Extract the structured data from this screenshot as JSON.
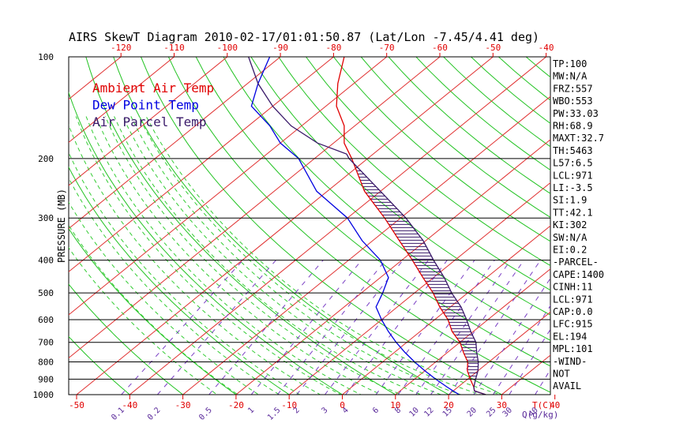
{
  "title": "AIRS SkewT Diagram 2010-02-17/01:01:50.87 (Lat/Lon -7.45/4.41 deg)",
  "legend": [
    {
      "label": "Ambient Air Temp",
      "color": "#e00000"
    },
    {
      "label": "Dew Point Temp",
      "color": "#0000e0"
    },
    {
      "label": "Air Parcel Temp",
      "color": "#3a1a6a"
    }
  ],
  "stats": [
    "TP:100",
    "MW:N/A",
    "FRZ:557",
    "WBO:553",
    "PW:33.03",
    "RH:68.9",
    "MAXT:32.7",
    "TH:5463",
    "L57:6.5",
    "LCL:971",
    "LI:-3.5",
    "SI:1.9",
    "TT:42.1",
    "KI:302",
    "SW:N/A",
    "EI:0.2",
    "-PARCEL-",
    "CAPE:1400",
    "CINH:11",
    "LCL:971",
    "CAP:0.0",
    "LFC:915",
    "EL:194",
    "MPL:101",
    "-WIND-",
    "NOT",
    "AVAIL"
  ],
  "chart_data": {
    "type": "line",
    "title": "AIRS SkewT Diagram 2010-02-17/01:01:50.87 (Lat/Lon -7.45/4.41 deg)",
    "ylabel": "PRESSURE (MB)",
    "xlabel": "T(C)",
    "y_log_scale": true,
    "ylim": [
      1000,
      100
    ],
    "xlim_bottom": [
      -50,
      40
    ],
    "pressure_ticks": [
      1000,
      900,
      800,
      700,
      600,
      500,
      400,
      300,
      200,
      100
    ],
    "temp_ticks_bottom": [
      -50,
      -40,
      -30,
      -20,
      -10,
      0,
      10,
      20,
      30,
      40
    ],
    "temp_ticks_top": [
      -120,
      -110,
      -100,
      -90,
      -80,
      -70,
      -60,
      -50,
      -40
    ],
    "mixing_ratio_labels": [
      "0.1",
      "0.2",
      "0.5",
      "1",
      "1.5",
      "2",
      "3",
      "4",
      "6",
      "8",
      "10",
      "12",
      "15",
      "20",
      "25",
      "30",
      "40"
    ],
    "mixing_ratio_unit": "Q(g/kg)",
    "series": [
      {
        "name": "Ambient Air Temp",
        "color": "#e00000",
        "pressure": [
          1000,
          975,
          950,
          900,
          850,
          800,
          750,
          700,
          650,
          600,
          550,
          500,
          450,
          400,
          350,
          300,
          250,
          200,
          180,
          160,
          140,
          120,
          100
        ],
        "temp": [
          27.0,
          24.0,
          23.0,
          20.5,
          18.0,
          16.0,
          13.0,
          10.0,
          6.0,
          2.5,
          -2.0,
          -6.5,
          -12.0,
          -18.0,
          -25.0,
          -33.0,
          -43.0,
          -53.0,
          -58.0,
          -62.0,
          -68.0,
          -73.0,
          -78.0
        ]
      },
      {
        "name": "Dew Point Temp",
        "color": "#0000e0",
        "pressure": [
          1000,
          975,
          950,
          900,
          850,
          800,
          750,
          700,
          650,
          600,
          550,
          500,
          450,
          400,
          350,
          300,
          250,
          200,
          180,
          160,
          140,
          120,
          100
        ],
        "temp": [
          22.0,
          20.0,
          18.0,
          14.0,
          10.0,
          6.0,
          2.0,
          -2.0,
          -6.0,
          -10.0,
          -14.0,
          -16.0,
          -18.5,
          -24.0,
          -32.0,
          -40.0,
          -52.0,
          -63.0,
          -70.0,
          -76.0,
          -84.0,
          -88.0,
          -92.0
        ]
      },
      {
        "name": "Air Parcel Temp",
        "color": "#3a1a6a",
        "pressure": [
          1000,
          975,
          950,
          900,
          850,
          800,
          750,
          700,
          650,
          600,
          550,
          500,
          450,
          400,
          350,
          300,
          250,
          200,
          194,
          180,
          160,
          140,
          120,
          100
        ],
        "temp": [
          27.0,
          24.0,
          23.0,
          21.5,
          20.0,
          18.0,
          15.5,
          13.0,
          9.5,
          6.0,
          2.0,
          -3.0,
          -8.0,
          -14.0,
          -20.5,
          -29.0,
          -40.0,
          -53.5,
          -55.0,
          -63.0,
          -72.0,
          -80.0,
          -88.0,
          -96.0
        ]
      }
    ]
  }
}
